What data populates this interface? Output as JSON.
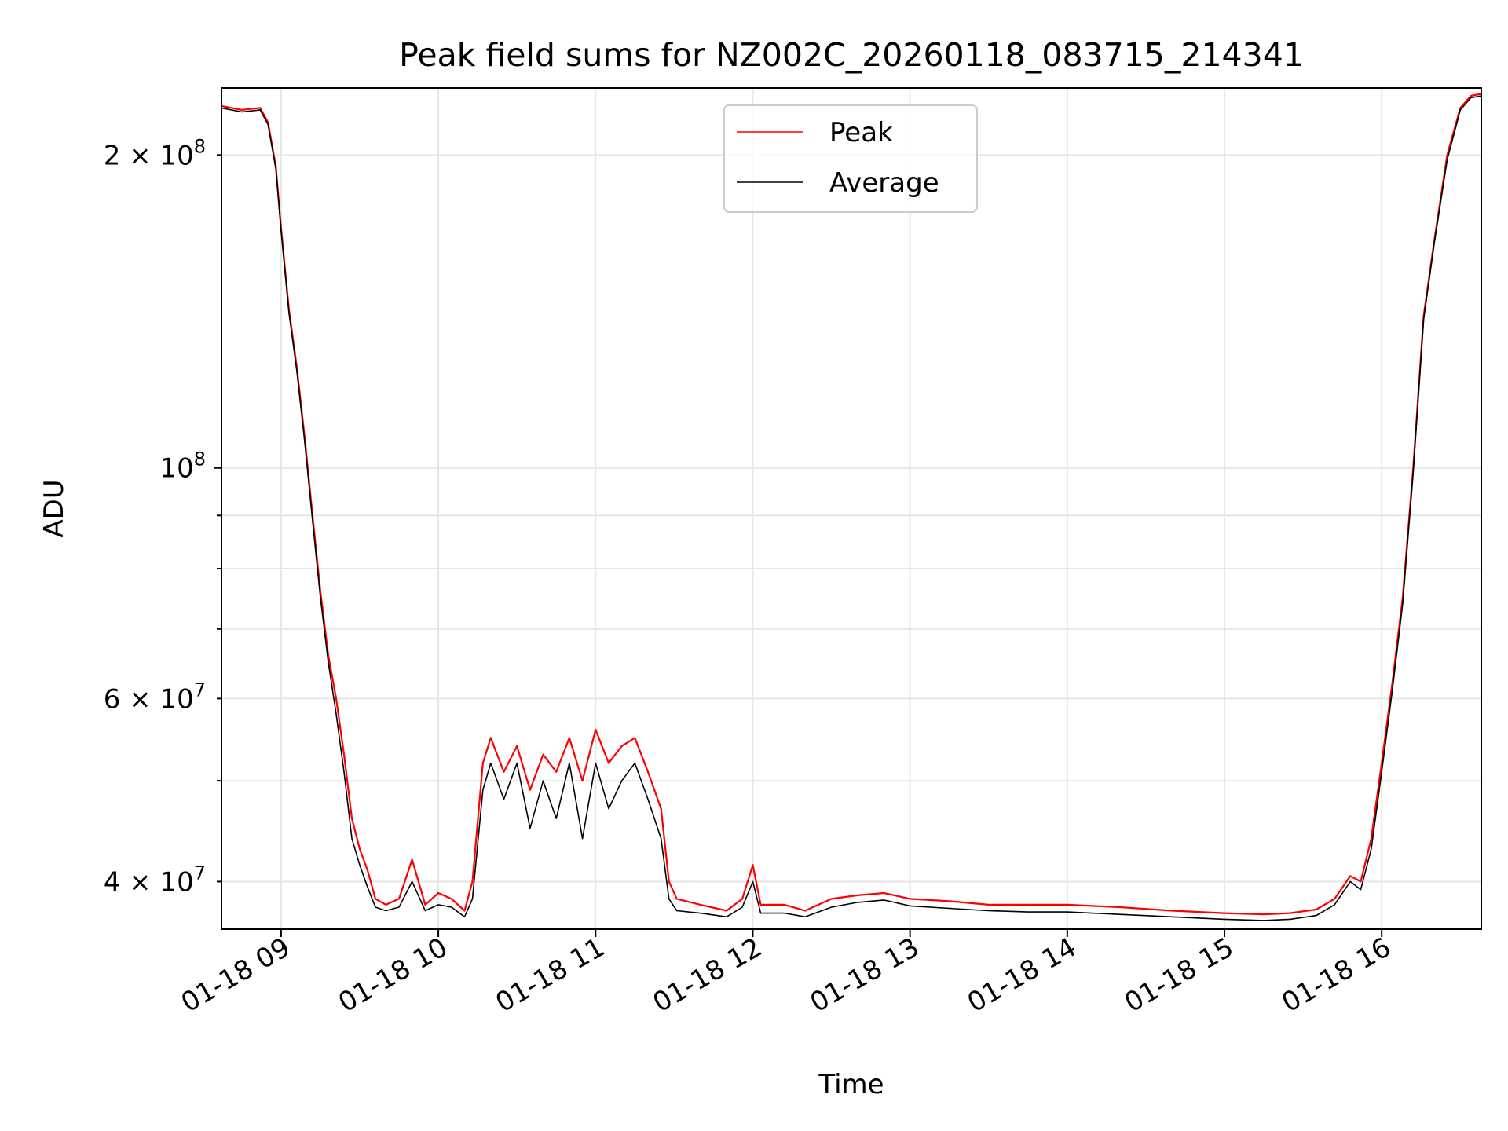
{
  "chart_data": {
    "type": "line",
    "title": "Peak field sums for NZ002C_20260118_083715_214341",
    "xlabel": "Time",
    "ylabel": "ADU",
    "x_unit": "datetime",
    "xlim": [
      "2026-01-18 08:37:15",
      "2026-01-18 16:38:00"
    ],
    "ylim": [
      36000000,
      232000000
    ],
    "yscale": "log",
    "grid": true,
    "legend_placement": "upper center",
    "x_ticks": [
      {
        "value": "2026-01-18 09:00",
        "label": "01-18 09"
      },
      {
        "value": "2026-01-18 10:00",
        "label": "01-18 10"
      },
      {
        "value": "2026-01-18 11:00",
        "label": "01-18 11"
      },
      {
        "value": "2026-01-18 12:00",
        "label": "01-18 12"
      },
      {
        "value": "2026-01-18 13:00",
        "label": "01-18 13"
      },
      {
        "value": "2026-01-18 14:00",
        "label": "01-18 14"
      },
      {
        "value": "2026-01-18 15:00",
        "label": "01-18 15"
      },
      {
        "value": "2026-01-18 16:00",
        "label": "01-18 16"
      }
    ],
    "y_major_ticks": [
      {
        "value": 100000000,
        "mant": "10",
        "exp": "8"
      }
    ],
    "y_minor_labeled_ticks": [
      {
        "value": 40000000,
        "mant": "4",
        "exp": "7"
      },
      {
        "value": 60000000,
        "mant": "6",
        "exp": "7"
      },
      {
        "value": 200000000,
        "mant": "2",
        "exp": "8"
      }
    ],
    "y_minor_ticks": [
      50000000,
      70000000,
      80000000,
      90000000
    ],
    "series": [
      {
        "name": "Peak",
        "color": "#ff0000",
        "x": [
          "2026-01-18 08:37",
          "2026-01-18 08:45",
          "2026-01-18 08:52",
          "2026-01-18 08:55",
          "2026-01-18 08:58",
          "2026-01-18 09:00",
          "2026-01-18 09:03",
          "2026-01-18 09:06",
          "2026-01-18 09:09",
          "2026-01-18 09:12",
          "2026-01-18 09:15",
          "2026-01-18 09:18",
          "2026-01-18 09:21",
          "2026-01-18 09:24",
          "2026-01-18 09:27",
          "2026-01-18 09:30",
          "2026-01-18 09:33",
          "2026-01-18 09:36",
          "2026-01-18 09:40",
          "2026-01-18 09:45",
          "2026-01-18 09:50",
          "2026-01-18 09:55",
          "2026-01-18 10:00",
          "2026-01-18 10:05",
          "2026-01-18 10:10",
          "2026-01-18 10:13",
          "2026-01-18 10:17",
          "2026-01-18 10:20",
          "2026-01-18 10:25",
          "2026-01-18 10:30",
          "2026-01-18 10:35",
          "2026-01-18 10:40",
          "2026-01-18 10:45",
          "2026-01-18 10:50",
          "2026-01-18 10:55",
          "2026-01-18 11:00",
          "2026-01-18 11:05",
          "2026-01-18 11:10",
          "2026-01-18 11:15",
          "2026-01-18 11:20",
          "2026-01-18 11:25",
          "2026-01-18 11:28",
          "2026-01-18 11:31",
          "2026-01-18 11:40",
          "2026-01-18 11:50",
          "2026-01-18 11:56",
          "2026-01-18 12:00",
          "2026-01-18 12:03",
          "2026-01-18 12:07",
          "2026-01-18 12:12",
          "2026-01-18 12:20",
          "2026-01-18 12:30",
          "2026-01-18 12:40",
          "2026-01-18 12:50",
          "2026-01-18 13:00",
          "2026-01-18 13:15",
          "2026-01-18 13:30",
          "2026-01-18 13:45",
          "2026-01-18 14:00",
          "2026-01-18 14:20",
          "2026-01-18 14:40",
          "2026-01-18 15:00",
          "2026-01-18 15:15",
          "2026-01-18 15:25",
          "2026-01-18 15:35",
          "2026-01-18 15:42",
          "2026-01-18 15:48",
          "2026-01-18 15:52",
          "2026-01-18 15:56",
          "2026-01-18 16:00",
          "2026-01-18 16:04",
          "2026-01-18 16:08",
          "2026-01-18 16:12",
          "2026-01-18 16:16",
          "2026-01-18 16:20",
          "2026-01-18 16:25",
          "2026-01-18 16:30",
          "2026-01-18 16:34",
          "2026-01-18 16:38"
        ],
        "y": [
          223000000,
          221000000,
          222000000,
          215000000,
          195000000,
          170000000,
          142000000,
          125000000,
          107000000,
          90000000,
          76000000,
          66000000,
          60000000,
          53000000,
          46000000,
          43000000,
          41000000,
          38500000,
          38000000,
          38500000,
          42000000,
          38000000,
          39000000,
          38500000,
          37500000,
          40000000,
          52000000,
          55000000,
          51000000,
          54000000,
          49000000,
          53000000,
          51000000,
          55000000,
          50000000,
          56000000,
          52000000,
          54000000,
          55000000,
          51000000,
          47000000,
          40000000,
          38500000,
          38000000,
          37500000,
          38500000,
          41500000,
          38000000,
          38000000,
          38000000,
          37500000,
          38500000,
          38800000,
          39000000,
          38500000,
          38300000,
          38000000,
          38000000,
          38000000,
          37800000,
          37500000,
          37300000,
          37200000,
          37300000,
          37600000,
          38500000,
          40500000,
          40000000,
          44000000,
          52000000,
          62000000,
          75000000,
          100000000,
          140000000,
          165000000,
          200000000,
          222000000,
          228000000,
          229000000
        ]
      },
      {
        "name": "Average",
        "color": "#000000",
        "x": [
          "2026-01-18 08:37",
          "2026-01-18 08:45",
          "2026-01-18 08:52",
          "2026-01-18 08:55",
          "2026-01-18 08:58",
          "2026-01-18 09:00",
          "2026-01-18 09:03",
          "2026-01-18 09:06",
          "2026-01-18 09:09",
          "2026-01-18 09:12",
          "2026-01-18 09:15",
          "2026-01-18 09:18",
          "2026-01-18 09:21",
          "2026-01-18 09:24",
          "2026-01-18 09:27",
          "2026-01-18 09:30",
          "2026-01-18 09:33",
          "2026-01-18 09:36",
          "2026-01-18 09:40",
          "2026-01-18 09:45",
          "2026-01-18 09:50",
          "2026-01-18 09:55",
          "2026-01-18 10:00",
          "2026-01-18 10:05",
          "2026-01-18 10:10",
          "2026-01-18 10:13",
          "2026-01-18 10:17",
          "2026-01-18 10:20",
          "2026-01-18 10:25",
          "2026-01-18 10:30",
          "2026-01-18 10:35",
          "2026-01-18 10:40",
          "2026-01-18 10:45",
          "2026-01-18 10:50",
          "2026-01-18 10:55",
          "2026-01-18 11:00",
          "2026-01-18 11:05",
          "2026-01-18 11:10",
          "2026-01-18 11:15",
          "2026-01-18 11:20",
          "2026-01-18 11:25",
          "2026-01-18 11:28",
          "2026-01-18 11:31",
          "2026-01-18 11:40",
          "2026-01-18 11:50",
          "2026-01-18 11:56",
          "2026-01-18 12:00",
          "2026-01-18 12:03",
          "2026-01-18 12:07",
          "2026-01-18 12:12",
          "2026-01-18 12:20",
          "2026-01-18 12:30",
          "2026-01-18 12:40",
          "2026-01-18 12:50",
          "2026-01-18 13:00",
          "2026-01-18 13:15",
          "2026-01-18 13:30",
          "2026-01-18 13:45",
          "2026-01-18 14:00",
          "2026-01-18 14:20",
          "2026-01-18 14:40",
          "2026-01-18 15:00",
          "2026-01-18 15:15",
          "2026-01-18 15:25",
          "2026-01-18 15:35",
          "2026-01-18 15:42",
          "2026-01-18 15:48",
          "2026-01-18 15:52",
          "2026-01-18 15:56",
          "2026-01-18 16:00",
          "2026-01-18 16:04",
          "2026-01-18 16:08",
          "2026-01-18 16:12",
          "2026-01-18 16:16",
          "2026-01-18 16:20",
          "2026-01-18 16:25",
          "2026-01-18 16:30",
          "2026-01-18 16:34",
          "2026-01-18 16:38"
        ],
        "y": [
          222000000,
          220000000,
          221000000,
          214000000,
          194000000,
          169000000,
          141000000,
          124000000,
          106000000,
          89000000,
          75000000,
          65000000,
          58000000,
          51000000,
          44000000,
          41500000,
          39500000,
          37800000,
          37500000,
          37800000,
          40000000,
          37500000,
          38000000,
          37800000,
          37000000,
          38500000,
          49000000,
          52000000,
          48000000,
          52000000,
          45000000,
          50000000,
          46000000,
          52000000,
          44000000,
          52000000,
          47000000,
          50000000,
          52000000,
          48000000,
          44000000,
          38500000,
          37500000,
          37300000,
          37000000,
          37800000,
          40000000,
          37300000,
          37300000,
          37300000,
          37000000,
          37800000,
          38200000,
          38400000,
          37900000,
          37700000,
          37500000,
          37400000,
          37400000,
          37200000,
          37000000,
          36800000,
          36700000,
          36800000,
          37100000,
          38000000,
          40000000,
          39300000,
          43000000,
          51000000,
          61000000,
          74000000,
          99000000,
          139000000,
          164000000,
          198000000,
          221000000,
          227000000,
          228000000
        ]
      }
    ]
  }
}
